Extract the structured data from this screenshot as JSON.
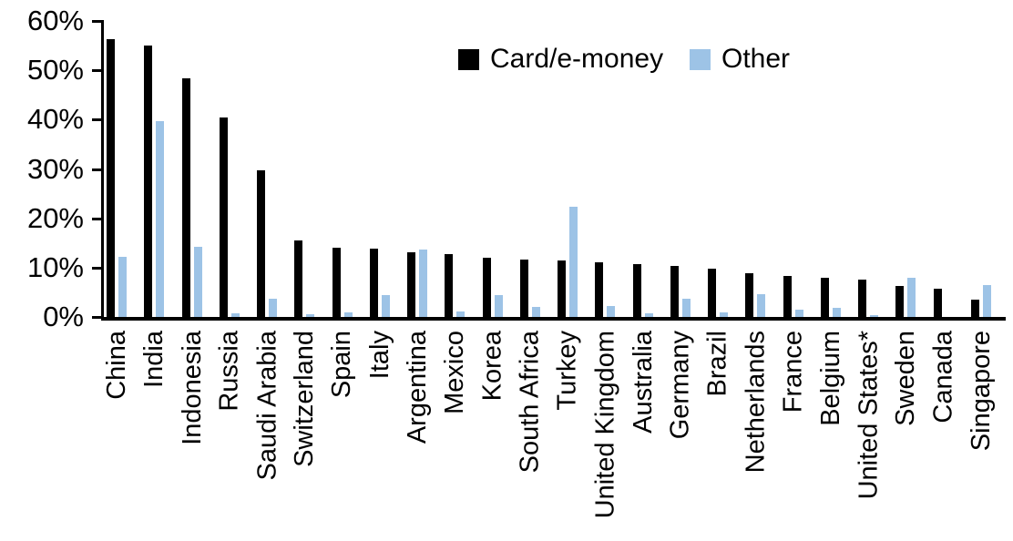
{
  "chart_data": {
    "type": "bar",
    "title": "",
    "xlabel": "",
    "ylabel": "",
    "categories": [
      "China",
      "India",
      "Indonesia",
      "Russia",
      "Saudi Arabia",
      "Switzerland",
      "Spain",
      "Italy",
      "Argentina",
      "Mexico",
      "Korea",
      "South Africa",
      "Turkey",
      "United Kingdom",
      "Australia",
      "Germany",
      "Brazil",
      "Netherlands",
      "France",
      "Belgium",
      "United States*",
      "Sweden",
      "Canada",
      "Singapore"
    ],
    "series": [
      {
        "name": "Card/e-money",
        "color": "#000000",
        "values": [
          56.4,
          55.1,
          48.3,
          40.5,
          29.8,
          15.5,
          14.0,
          13.8,
          13.2,
          12.7,
          12.0,
          11.6,
          11.4,
          11.0,
          10.7,
          10.3,
          9.7,
          8.9,
          8.4,
          7.9,
          7.5,
          6.3,
          5.7,
          3.6
        ]
      },
      {
        "name": "Other",
        "color": "#9DC3E6",
        "values": [
          12.1,
          39.7,
          14.3,
          0.8,
          3.7,
          0.6,
          0.9,
          4.4,
          13.6,
          1.1,
          4.4,
          2.1,
          22.4,
          2.2,
          0.8,
          3.7,
          1.0,
          4.7,
          1.4,
          1.9,
          0.3,
          7.9,
          0.0,
          6.4
        ]
      }
    ],
    "y_axis": {
      "tick_labels": [
        "0%",
        "10%",
        "20%",
        "30%",
        "40%",
        "50%",
        "60%"
      ],
      "tick_values": [
        0,
        10,
        20,
        30,
        40,
        50,
        60
      ],
      "ylim": [
        0,
        60
      ]
    },
    "legend": {
      "position": "top-center",
      "entries": [
        "Card/e-money",
        "Other"
      ]
    },
    "grid": "off"
  },
  "colors": {
    "card_series": "#000000",
    "other_series": "#9DC3E6",
    "axis": "#000000",
    "background": "#FFFFFF"
  }
}
